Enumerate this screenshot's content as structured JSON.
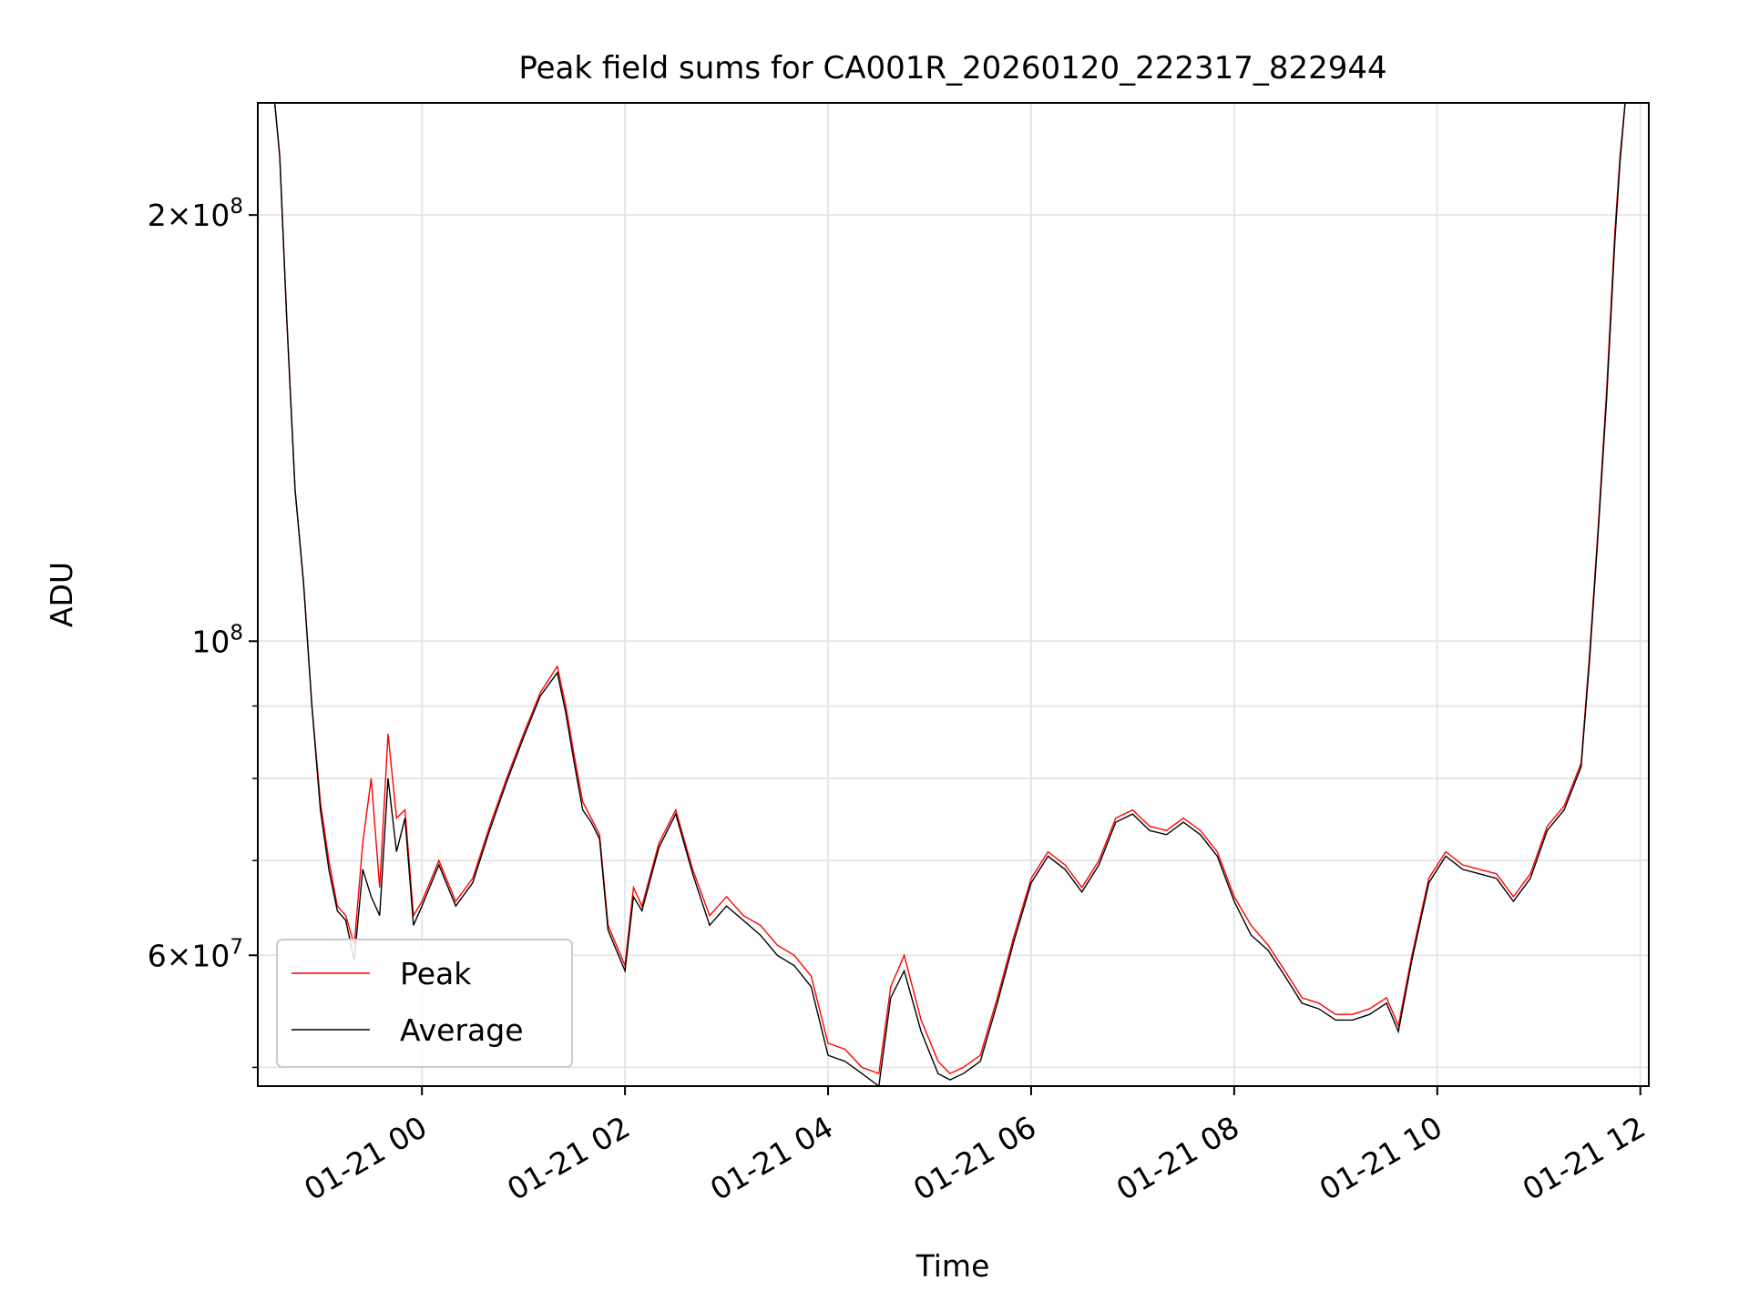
{
  "chart_data": {
    "type": "line",
    "title": "Peak field sums for CA001R_20260120_222317_822944",
    "xlabel": "Time",
    "ylabel": "ADU",
    "y_scale": "log",
    "ylim": [
      48500000,
      240000000
    ],
    "xlim": [
      "2026-01-20 22:23",
      "2026-01-21 12:05"
    ],
    "grid": true,
    "legend_position": "lower left",
    "x_ticks": [
      {
        "x": "2026-01-21 00:00",
        "label": "01-21 00"
      },
      {
        "x": "2026-01-21 02:00",
        "label": "01-21 02"
      },
      {
        "x": "2026-01-21 04:00",
        "label": "01-21 04"
      },
      {
        "x": "2026-01-21 06:00",
        "label": "01-21 06"
      },
      {
        "x": "2026-01-21 08:00",
        "label": "01-21 08"
      },
      {
        "x": "2026-01-21 10:00",
        "label": "01-21 10"
      },
      {
        "x": "2026-01-21 12:00",
        "label": "01-21 12"
      }
    ],
    "y_major_ticks": [
      {
        "y": 200000000,
        "mant": "2",
        "base": "10",
        "exp": "8"
      },
      {
        "y": 100000000,
        "mant": "",
        "base": "10",
        "exp": "8"
      },
      {
        "y": 60000000,
        "mant": "6",
        "base": "10",
        "exp": "7"
      }
    ],
    "y_minor_ticks": [
      50000000,
      70000000,
      80000000,
      90000000
    ],
    "series": [
      {
        "name": "Peak",
        "color": "#ff0000",
        "x": [
          "2026-01-20 22:33",
          "2026-01-20 22:36",
          "2026-01-20 22:40",
          "2026-01-20 22:45",
          "2026-01-20 22:50",
          "2026-01-20 22:55",
          "2026-01-20 23:00",
          "2026-01-20 23:05",
          "2026-01-20 23:10",
          "2026-01-20 23:15",
          "2026-01-20 23:20",
          "2026-01-20 23:25",
          "2026-01-20 23:30",
          "2026-01-20 23:35",
          "2026-01-20 23:40",
          "2026-01-20 23:45",
          "2026-01-20 23:50",
          "2026-01-20 23:55",
          "2026-01-21 00:00",
          "2026-01-21 00:10",
          "2026-01-21 00:20",
          "2026-01-21 00:30",
          "2026-01-21 00:40",
          "2026-01-21 00:50",
          "2026-01-21 01:00",
          "2026-01-21 01:10",
          "2026-01-21 01:20",
          "2026-01-21 01:25",
          "2026-01-21 01:30",
          "2026-01-21 01:35",
          "2026-01-21 01:40",
          "2026-01-21 01:45",
          "2026-01-21 01:50",
          "2026-01-21 02:00",
          "2026-01-21 02:05",
          "2026-01-21 02:10",
          "2026-01-21 02:20",
          "2026-01-21 02:30",
          "2026-01-21 02:40",
          "2026-01-21 02:50",
          "2026-01-21 03:00",
          "2026-01-21 03:10",
          "2026-01-21 03:20",
          "2026-01-21 03:30",
          "2026-01-21 03:40",
          "2026-01-21 03:50",
          "2026-01-21 04:00",
          "2026-01-21 04:10",
          "2026-01-21 04:20",
          "2026-01-21 04:30",
          "2026-01-21 04:37",
          "2026-01-21 04:45",
          "2026-01-21 04:55",
          "2026-01-21 05:05",
          "2026-01-21 05:12",
          "2026-01-21 05:20",
          "2026-01-21 05:30",
          "2026-01-21 05:40",
          "2026-01-21 05:50",
          "2026-01-21 06:00",
          "2026-01-21 06:10",
          "2026-01-21 06:20",
          "2026-01-21 06:30",
          "2026-01-21 06:40",
          "2026-01-21 06:50",
          "2026-01-21 07:00",
          "2026-01-21 07:10",
          "2026-01-21 07:20",
          "2026-01-21 07:30",
          "2026-01-21 07:40",
          "2026-01-21 07:50",
          "2026-01-21 08:00",
          "2026-01-21 08:10",
          "2026-01-21 08:20",
          "2026-01-21 08:30",
          "2026-01-21 08:40",
          "2026-01-21 08:50",
          "2026-01-21 09:00",
          "2026-01-21 09:10",
          "2026-01-21 09:20",
          "2026-01-21 09:30",
          "2026-01-21 09:37",
          "2026-01-21 09:45",
          "2026-01-21 09:55",
          "2026-01-21 10:05",
          "2026-01-21 10:15",
          "2026-01-21 10:25",
          "2026-01-21 10:35",
          "2026-01-21 10:45",
          "2026-01-21 10:55",
          "2026-01-21 11:05",
          "2026-01-21 11:15",
          "2026-01-21 11:25",
          "2026-01-21 11:30",
          "2026-01-21 11:35",
          "2026-01-21 11:40",
          "2026-01-21 11:45",
          "2026-01-21 11:48",
          "2026-01-21 11:51"
        ],
        "values": [
          240000000,
          220000000,
          170000000,
          128000000,
          110000000,
          90000000,
          77000000,
          70000000,
          65000000,
          64000000,
          61000000,
          72000000,
          80000000,
          67000000,
          86000000,
          75000000,
          76000000,
          64000000,
          65500000,
          70000000,
          65500000,
          68000000,
          74000000,
          80000000,
          86000000,
          92000000,
          96000000,
          90000000,
          83000000,
          77000000,
          75000000,
          73000000,
          63000000,
          59000000,
          67000000,
          65000000,
          72000000,
          76000000,
          69000000,
          64000000,
          66000000,
          64000000,
          63000000,
          61000000,
          60000000,
          58000000,
          52000000,
          51500000,
          50000000,
          49500000,
          57000000,
          60000000,
          54000000,
          50500000,
          49500000,
          50000000,
          51000000,
          56000000,
          62000000,
          68000000,
          71000000,
          69500000,
          67000000,
          70000000,
          75000000,
          76000000,
          74000000,
          73500000,
          75000000,
          73500000,
          71000000,
          66000000,
          63000000,
          61000000,
          58500000,
          56000000,
          55500000,
          54500000,
          54500000,
          55000000,
          56000000,
          53500000,
          60000000,
          68000000,
          71000000,
          69500000,
          69000000,
          68500000,
          66000000,
          68500000,
          74000000,
          76500000,
          82000000,
          98000000,
          120000000,
          150000000,
          195000000,
          220000000,
          240000000
        ]
      },
      {
        "name": "Average",
        "color": "#000000",
        "x": [
          "2026-01-20 22:33",
          "2026-01-20 22:36",
          "2026-01-20 22:40",
          "2026-01-20 22:45",
          "2026-01-20 22:50",
          "2026-01-20 22:55",
          "2026-01-20 23:00",
          "2026-01-20 23:05",
          "2026-01-20 23:10",
          "2026-01-20 23:15",
          "2026-01-20 23:20",
          "2026-01-20 23:25",
          "2026-01-20 23:30",
          "2026-01-20 23:35",
          "2026-01-20 23:40",
          "2026-01-20 23:45",
          "2026-01-20 23:50",
          "2026-01-20 23:55",
          "2026-01-21 00:00",
          "2026-01-21 00:10",
          "2026-01-21 00:20",
          "2026-01-21 00:30",
          "2026-01-21 00:40",
          "2026-01-21 00:50",
          "2026-01-21 01:00",
          "2026-01-21 01:10",
          "2026-01-21 01:20",
          "2026-01-21 01:25",
          "2026-01-21 01:30",
          "2026-01-21 01:35",
          "2026-01-21 01:40",
          "2026-01-21 01:45",
          "2026-01-21 01:50",
          "2026-01-21 02:00",
          "2026-01-21 02:05",
          "2026-01-21 02:10",
          "2026-01-21 02:20",
          "2026-01-21 02:30",
          "2026-01-21 02:40",
          "2026-01-21 02:50",
          "2026-01-21 03:00",
          "2026-01-21 03:10",
          "2026-01-21 03:20",
          "2026-01-21 03:30",
          "2026-01-21 03:40",
          "2026-01-21 03:50",
          "2026-01-21 04:00",
          "2026-01-21 04:10",
          "2026-01-21 04:20",
          "2026-01-21 04:30",
          "2026-01-21 04:37",
          "2026-01-21 04:45",
          "2026-01-21 04:55",
          "2026-01-21 05:05",
          "2026-01-21 05:12",
          "2026-01-21 05:20",
          "2026-01-21 05:30",
          "2026-01-21 05:40",
          "2026-01-21 05:50",
          "2026-01-21 06:00",
          "2026-01-21 06:10",
          "2026-01-21 06:20",
          "2026-01-21 06:30",
          "2026-01-21 06:40",
          "2026-01-21 06:50",
          "2026-01-21 07:00",
          "2026-01-21 07:10",
          "2026-01-21 07:20",
          "2026-01-21 07:30",
          "2026-01-21 07:40",
          "2026-01-21 07:50",
          "2026-01-21 08:00",
          "2026-01-21 08:10",
          "2026-01-21 08:20",
          "2026-01-21 08:30",
          "2026-01-21 08:40",
          "2026-01-21 08:50",
          "2026-01-21 09:00",
          "2026-01-21 09:10",
          "2026-01-21 09:20",
          "2026-01-21 09:30",
          "2026-01-21 09:37",
          "2026-01-21 09:45",
          "2026-01-21 09:55",
          "2026-01-21 10:05",
          "2026-01-21 10:15",
          "2026-01-21 10:25",
          "2026-01-21 10:35",
          "2026-01-21 10:45",
          "2026-01-21 10:55",
          "2026-01-21 11:05",
          "2026-01-21 11:15",
          "2026-01-21 11:25",
          "2026-01-21 11:30",
          "2026-01-21 11:35",
          "2026-01-21 11:40",
          "2026-01-21 11:45",
          "2026-01-21 11:48",
          "2026-01-21 11:51"
        ],
        "values": [
          240000000,
          220000000,
          170000000,
          128000000,
          110000000,
          90000000,
          76000000,
          69000000,
          64500000,
          63500000,
          59500000,
          69000000,
          66000000,
          64000000,
          80000000,
          71000000,
          75000000,
          63000000,
          65000000,
          69500000,
          65000000,
          67500000,
          73500000,
          79500000,
          85500000,
          91500000,
          95000000,
          89000000,
          82000000,
          76000000,
          74500000,
          72500000,
          62500000,
          58500000,
          66000000,
          64500000,
          71500000,
          75500000,
          68500000,
          63000000,
          65000000,
          63500000,
          62000000,
          60000000,
          59000000,
          57000000,
          51000000,
          50500000,
          49500000,
          48500000,
          56000000,
          58500000,
          53000000,
          49500000,
          49000000,
          49500000,
          50500000,
          55500000,
          61500000,
          67500000,
          70500000,
          69000000,
          66500000,
          69500000,
          74500000,
          75500000,
          73500000,
          73000000,
          74500000,
          73000000,
          70500000,
          65500000,
          62000000,
          60500000,
          58000000,
          55500000,
          55000000,
          54000000,
          54000000,
          54500000,
          55500000,
          53000000,
          59500000,
          67500000,
          70500000,
          69000000,
          68500000,
          68000000,
          65500000,
          68000000,
          73500000,
          76000000,
          81500000,
          97000000,
          119000000,
          148000000,
          192000000,
          218000000,
          240000000
        ]
      }
    ]
  }
}
